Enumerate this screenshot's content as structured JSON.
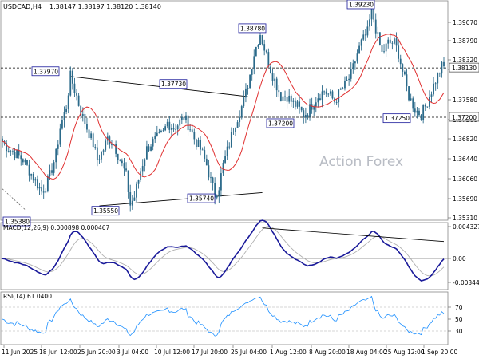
{
  "header": {
    "symbol": "USDCAD,H4",
    "ohlc": "1.38147 1.38197 1.38120 1.38140"
  },
  "watermark": "Action Forex",
  "colors": {
    "candle": "#2b6a8a",
    "ma": "#e03030",
    "macd": "#1a1a9a",
    "signal": "#b0b0b0",
    "rsi": "#1e90ff",
    "trend": "#000000",
    "level": "#000000",
    "callout_border": "#1a1a9a"
  },
  "chart_data": [
    {
      "type": "candlestick",
      "panel": "price",
      "ylim": [
        1.3532,
        1.3935
      ],
      "y_ticks": [
        "1.39070",
        "1.38790",
        "1.38320",
        "1.38130",
        "1.37580",
        "1.37200",
        "1.36820",
        "1.36440",
        "1.36060",
        "1.35690",
        "1.35310"
      ],
      "current_price_label": "1.38130",
      "level_label": "1.37200",
      "horizontal_levels": [
        1.3813,
        1.372
      ],
      "annotations": [
        {
          "label": "1.37970",
          "value": 1.3797
        },
        {
          "label": "1.37730",
          "value": 1.3773
        },
        {
          "label": "1.38780",
          "value": 1.3878
        },
        {
          "label": "1.39230",
          "value": 1.3923
        },
        {
          "label": "1.37200",
          "value": 1.372
        },
        {
          "label": "1.37250",
          "value": 1.3725
        },
        {
          "label": "1.35740",
          "value": 1.3574
        },
        {
          "label": "1.35550",
          "value": 1.3555
        },
        {
          "label": "1.35380",
          "value": 1.3538
        }
      ],
      "series": [
        {
          "name": "USDCAD,H4",
          "kind": "candles",
          "anchors": [
            [
              0,
              1.3675
            ],
            [
              3,
              1.366
            ],
            [
              7,
              1.365
            ],
            [
              10,
              1.364
            ],
            [
              13,
              1.362
            ],
            [
              16,
              1.36
            ],
            [
              19,
              1.358
            ],
            [
              21,
              1.359
            ],
            [
              23,
              1.361
            ],
            [
              26,
              1.365
            ],
            [
              28,
              1.37
            ],
            [
              31,
              1.374
            ],
            [
              33,
              1.3797
            ],
            [
              36,
              1.376
            ],
            [
              38,
              1.373
            ],
            [
              41,
              1.37
            ],
            [
              44,
              1.367
            ],
            [
              46,
              1.364
            ],
            [
              49,
              1.366
            ],
            [
              51,
              1.368
            ],
            [
              54,
              1.367
            ],
            [
              57,
              1.364
            ],
            [
              60,
              1.361
            ],
            [
              62,
              1.3555
            ],
            [
              64,
              1.357
            ],
            [
              67,
              1.362
            ],
            [
              70,
              1.366
            ],
            [
              72,
              1.367
            ],
            [
              75,
              1.368
            ],
            [
              78,
              1.369
            ],
            [
              80,
              1.371
            ],
            [
              83,
              1.37
            ],
            [
              86,
              1.371
            ],
            [
              88,
              1.372
            ],
            [
              91,
              1.37
            ],
            [
              93,
              1.368
            ],
            [
              96,
              1.366
            ],
            [
              99,
              1.363
            ],
            [
              101,
              1.36
            ],
            [
              103,
              1.3574
            ],
            [
              105,
              1.359
            ],
            [
              107,
              1.363
            ],
            [
              110,
              1.367
            ],
            [
              112,
              1.37
            ],
            [
              114,
              1.372
            ],
            [
              117,
              1.375
            ],
            [
              120,
              1.38
            ],
            [
              122,
              1.384
            ],
            [
              125,
              1.3878
            ],
            [
              127,
              1.385
            ],
            [
              130,
              1.381
            ],
            [
              133,
              1.378
            ],
            [
              135,
              1.376
            ],
            [
              138,
              1.376
            ],
            [
              140,
              1.375
            ],
            [
              143,
              1.374
            ],
            [
              146,
              1.3725
            ],
            [
              148,
              1.373
            ],
            [
              151,
              1.375
            ],
            [
              153,
              1.376
            ],
            [
              156,
              1.377
            ],
            [
              159,
              1.376
            ],
            [
              161,
              1.375
            ],
            [
              164,
              1.377
            ],
            [
              166,
              1.378
            ],
            [
              169,
              1.38
            ],
            [
              172,
              1.384
            ],
            [
              174,
              1.386
            ],
            [
              177,
              1.388
            ],
            [
              179,
              1.3923
            ],
            [
              182,
              1.387
            ],
            [
              184,
              1.384
            ],
            [
              187,
              1.386
            ],
            [
              190,
              1.386
            ],
            [
              192,
              1.384
            ],
            [
              195,
              1.379
            ],
            [
              197,
              1.376
            ],
            [
              200,
              1.3735
            ],
            [
              203,
              1.3725
            ],
            [
              205,
              1.374
            ],
            [
              208,
              1.377
            ],
            [
              210,
              1.379
            ],
            [
              213,
              1.3815
            ],
            [
              214,
              1.3814
            ]
          ]
        },
        {
          "name": "MA",
          "kind": "line"
        }
      ]
    },
    {
      "type": "line",
      "panel": "macd",
      "title": "MACD(12,26,9) 0.000898 0.000467",
      "ylim": [
        -0.004,
        0.0046
      ],
      "y_ticks": [
        "0.004327",
        "0.00",
        "-0.003444"
      ],
      "series": [
        {
          "name": "MACD"
        },
        {
          "name": "Signal"
        }
      ]
    },
    {
      "type": "line",
      "panel": "rsi",
      "title": "RSI(14) 61.0400",
      "ylim": [
        10,
        90
      ],
      "y_ticks": [
        "70",
        "50",
        "30"
      ],
      "series": [
        {
          "name": "RSI(14)"
        }
      ]
    }
  ],
  "x_ticks": [
    "11 Jun 2025",
    "18 Jun 12:00",
    "25 Jun 20:00",
    "3 Jul 04:00",
    "10 Jul 12:00",
    "17 Jul 20:00",
    "25 Jul 04:00",
    "1 Aug 12:00",
    "8 Aug 20:00",
    "18 Aug 04:00",
    "25 Aug 12:00",
    "1 Sep 20:00"
  ]
}
